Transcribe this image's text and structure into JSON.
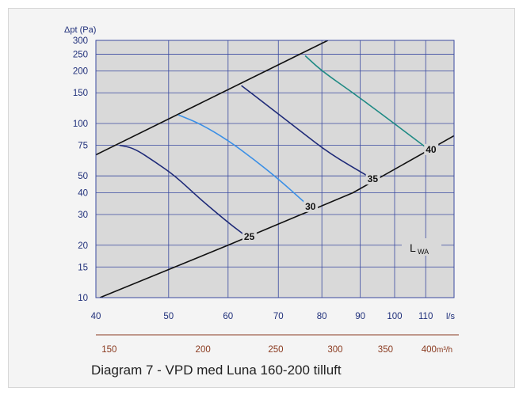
{
  "caption": "Diagram 7 - VPD med Luna 160-200 tilluft",
  "chart_data": {
    "type": "line",
    "y_axis_title": "Δpt (Pa)",
    "x_unit": "l/s",
    "x2_unit": "m³/h",
    "x_scale": "log",
    "y_scale": "log",
    "xlim": [
      40,
      120
    ],
    "ylim": [
      10,
      300
    ],
    "grid": true,
    "x_ticks": [
      40,
      50,
      60,
      70,
      80,
      90,
      100,
      110
    ],
    "x_tick_labels": [
      "40",
      "50",
      "60",
      "70",
      "80",
      "90",
      "100",
      "110"
    ],
    "y_ticks": [
      10,
      15,
      20,
      30,
      40,
      50,
      75,
      100,
      150,
      200,
      250,
      300
    ],
    "y_tick_labels": [
      "10",
      "15",
      "20",
      "30",
      "40",
      "50",
      "75",
      "100",
      "150",
      "200",
      "250",
      "300"
    ],
    "x2_ticks": [
      150,
      200,
      250,
      300,
      350,
      400
    ],
    "x2_tick_labels": [
      "150",
      "200",
      "250",
      "300",
      "350",
      "400"
    ],
    "lwa_label": "L",
    "lwa_sub": "WA",
    "colors": {
      "plot_bg": "#d9d9d9",
      "grid": "#3a4aa0",
      "axis_text": "#1f2f7a",
      "m3h_text": "#8a3a1f",
      "limit_line": "#111111"
    },
    "limit_lines": [
      {
        "points": [
          [
            40,
            66
          ],
          [
            40.1,
            66.4
          ],
          [
            81.5,
            300
          ]
        ],
        "color": "#111111"
      },
      {
        "points": [
          [
            40.5,
            10
          ],
          [
            60,
            20
          ],
          [
            88,
            40
          ],
          [
            120,
            85
          ]
        ],
        "color": "#111111"
      }
    ],
    "series": [
      {
        "label": "25",
        "color": "#1e2a78",
        "points": [
          [
            43,
            75
          ],
          [
            45,
            72
          ],
          [
            48,
            60
          ],
          [
            51,
            50
          ],
          [
            55,
            37
          ],
          [
            60,
            27
          ],
          [
            63,
            23
          ]
        ],
        "label_at": [
          63,
          21.5
        ]
      },
      {
        "label": "30",
        "color": "#3a8fe6",
        "points": [
          [
            51.5,
            112
          ],
          [
            55,
            100
          ],
          [
            60,
            80
          ],
          [
            65,
            62
          ],
          [
            70,
            48
          ],
          [
            76,
            35
          ]
        ],
        "label_at": [
          76,
          32
        ]
      },
      {
        "label": "35",
        "color": "#1e2a78",
        "points": [
          [
            62.5,
            165
          ],
          [
            68,
            125
          ],
          [
            75,
            90
          ],
          [
            82,
            67
          ],
          [
            92,
            50
          ]
        ],
        "label_at": [
          92,
          46
        ]
      },
      {
        "label": "40",
        "color": "#1f8a84",
        "points": [
          [
            76,
            245
          ],
          [
            80,
            200
          ],
          [
            88,
            150
          ],
          [
            97,
            110
          ],
          [
            110,
            73
          ]
        ],
        "label_at": [
          110,
          68
        ]
      }
    ]
  }
}
